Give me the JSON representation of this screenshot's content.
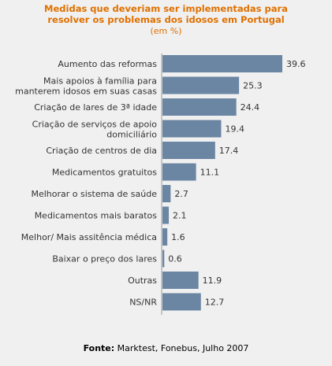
{
  "chart_data": {
    "type": "bar",
    "orientation": "horizontal",
    "title_lines": [
      "Medidas que deveriam ser implementadas para",
      "resolver os problemas dos idosos em Portugal"
    ],
    "subtitle": "(em %)",
    "categories": [
      [
        "Aumento das reformas"
      ],
      [
        "Mais apoios à família para",
        "manterem idosos em suas casas"
      ],
      [
        "Criação de lares de 3ª idade"
      ],
      [
        "Criação de serviços de apoio",
        "domiciliário"
      ],
      [
        "Criação de centros de dia"
      ],
      [
        "Medicamentos gratuitos"
      ],
      [
        "Melhorar o sistema de saúde"
      ],
      [
        "Medicamentos mais baratos"
      ],
      [
        "Melhor/ Mais assitência médica"
      ],
      [
        "Baixar o preço dos lares"
      ],
      [
        "Outras"
      ],
      [
        "NS/NR"
      ]
    ],
    "values": [
      39.6,
      25.3,
      24.4,
      19.4,
      17.4,
      11.1,
      2.7,
      2.1,
      1.6,
      0.6,
      11.9,
      12.7
    ],
    "value_labels": [
      "39.6",
      "25.3",
      "24.4",
      "19.4",
      "17.4",
      "11.1",
      "2.7",
      "2.1",
      "1.6",
      "0.6",
      "11.9",
      "12.7"
    ],
    "bar_color": "#6b86a3",
    "axis_color": "#999999",
    "xlim": [
      0,
      39.6
    ],
    "grid": false
  },
  "source": {
    "label": "Fonte:",
    "text": "Marktest, Fonebus, Julho 2007"
  }
}
